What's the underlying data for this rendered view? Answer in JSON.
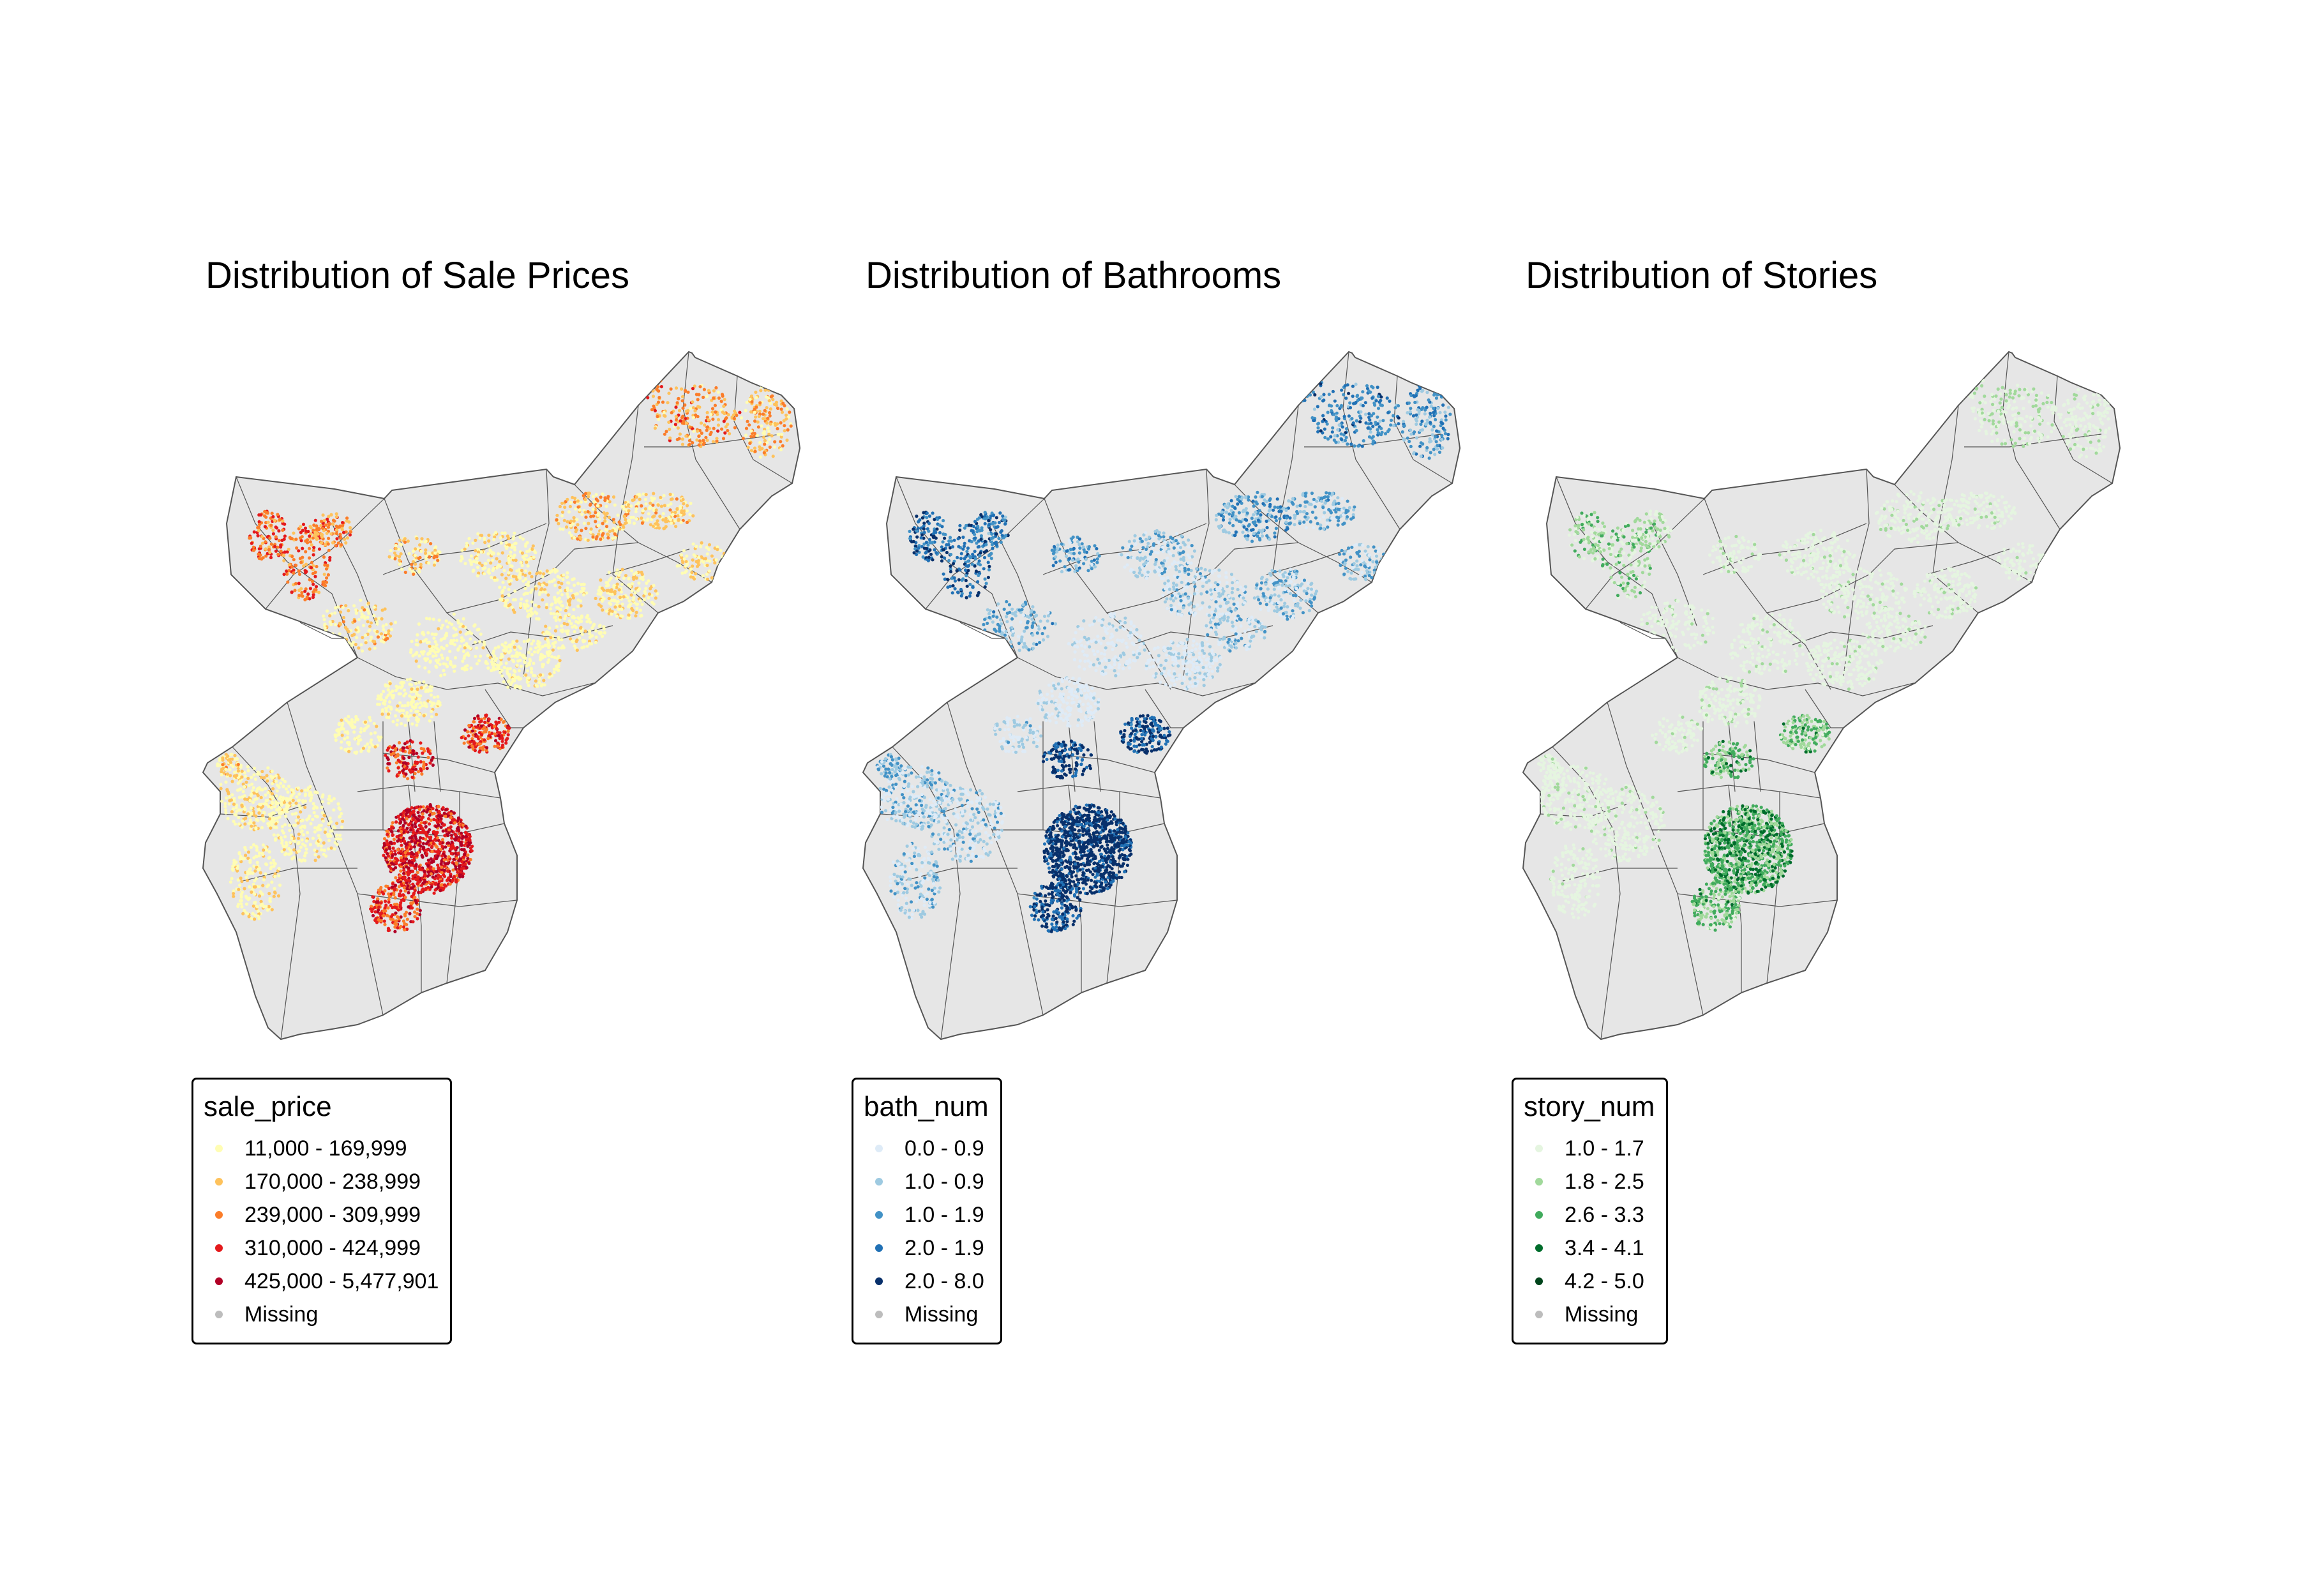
{
  "maps": [
    {
      "id": "sale-price",
      "title": "Distribution of Sale Prices",
      "legend": {
        "title": "sale_price",
        "items": [
          {
            "label": "11,000 - 169,999",
            "color": "#fffdb4"
          },
          {
            "label": "170,000 - 238,999",
            "color": "#fec25c"
          },
          {
            "label": "239,000 - 309,999",
            "color": "#fb7d2a"
          },
          {
            "label": "310,000 - 424,999",
            "color": "#e41a1c"
          },
          {
            "label": "425,000 - 5,477,901",
            "color": "#b10026"
          },
          {
            "label": "Missing",
            "color": "#bdbdbd"
          }
        ]
      }
    },
    {
      "id": "bathrooms",
      "title": "Distribution of Bathrooms",
      "legend": {
        "title": "bath_num",
        "items": [
          {
            "label": "0.0 - 0.9",
            "color": "#deebf7"
          },
          {
            "label": "1.0 - 0.9",
            "color": "#9ecae1"
          },
          {
            "label": "1.0 - 1.9",
            "color": "#4292c6"
          },
          {
            "label": "2.0 - 1.9",
            "color": "#2171b5"
          },
          {
            "label": "2.0 - 8.0",
            "color": "#08306b"
          },
          {
            "label": "Missing",
            "color": "#bdbdbd"
          }
        ]
      }
    },
    {
      "id": "stories",
      "title": "Distribution of Stories",
      "legend": {
        "title": "story_num",
        "items": [
          {
            "label": "1.0 - 1.7",
            "color": "#e5f5e0"
          },
          {
            "label": "1.8 - 2.5",
            "color": "#a1d99b"
          },
          {
            "label": "2.6 - 3.3",
            "color": "#41ab5d"
          },
          {
            "label": "3.4 - 4.1",
            "color": "#006d2c"
          },
          {
            "label": "4.2 - 5.0",
            "color": "#00441b"
          },
          {
            "label": "Missing",
            "color": "#bdbdbd"
          }
        ]
      }
    }
  ],
  "colors": {
    "land": "#e6e6e6",
    "boundary": "#555555"
  }
}
